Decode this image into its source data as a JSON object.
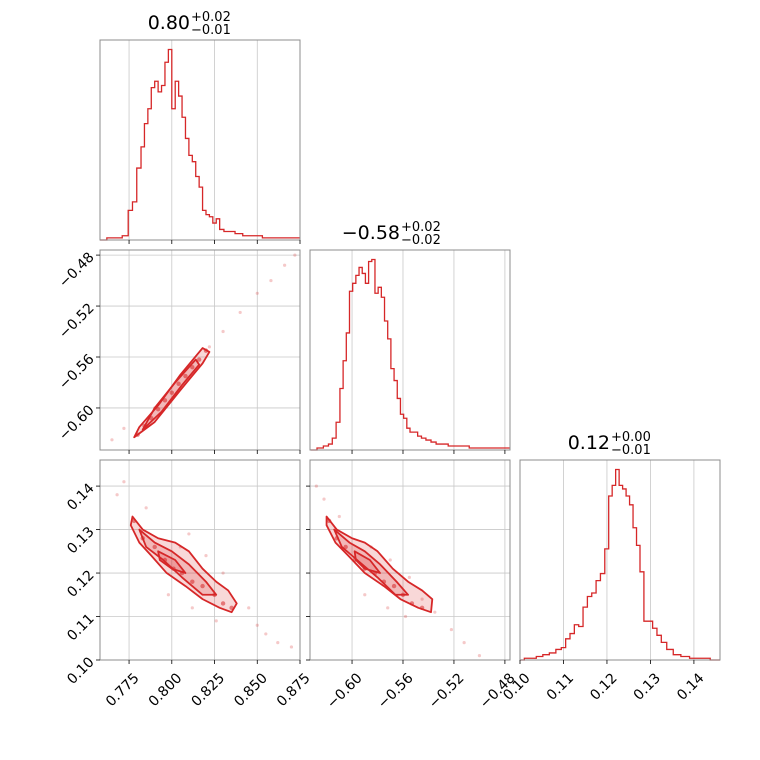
{
  "chart_data": {
    "type": "corner",
    "color": "#d62728",
    "grid": true,
    "parameters": [
      {
        "index": 0,
        "title_value": "0.80",
        "title_upper": "+0.02",
        "title_lower": "−0.01",
        "range": [
          0.758,
          0.875
        ],
        "ticks": [
          {
            "value": 0.775,
            "label": "0.775"
          },
          {
            "value": 0.8,
            "label": "0.800"
          },
          {
            "value": 0.825,
            "label": "0.825"
          },
          {
            "value": 0.85,
            "label": "0.850"
          },
          {
            "value": 0.875,
            "label": "0.875"
          }
        ],
        "histogram": {
          "x": [
            0.76,
            0.764,
            0.769,
            0.773,
            0.776,
            0.778,
            0.781,
            0.783,
            0.785,
            0.787,
            0.789,
            0.791,
            0.793,
            0.795,
            0.797,
            0.799,
            0.801,
            0.803,
            0.805,
            0.807,
            0.809,
            0.811,
            0.813,
            0.815,
            0.817,
            0.819,
            0.821,
            0.823,
            0.825,
            0.827,
            0.829,
            0.832,
            0.835,
            0.839,
            0.844,
            0.85,
            0.856,
            0.862,
            0.868,
            0.873
          ],
          "y": [
            0,
            1,
            1,
            2,
            14,
            18,
            34,
            44,
            55,
            62,
            72,
            75,
            70,
            73,
            84,
            90,
            62,
            75,
            68,
            58,
            48,
            40,
            37,
            30,
            25,
            14,
            12,
            11,
            8,
            10,
            5,
            4,
            4,
            3,
            2,
            2,
            1,
            1,
            1,
            1
          ]
        }
      },
      {
        "index": 1,
        "title_value": "−0.58",
        "title_upper": "+0.02",
        "title_lower": "−0.02",
        "range": [
          -0.633,
          -0.476
        ],
        "ticks": [
          {
            "value": -0.6,
            "label": "−0.60"
          },
          {
            "value": -0.56,
            "label": "−0.56"
          },
          {
            "value": -0.52,
            "label": "−0.52"
          },
          {
            "value": -0.48,
            "label": "−0.48"
          }
        ],
        "histogram": {
          "x": [
            -0.63,
            -0.625,
            -0.62,
            -0.617,
            -0.614,
            -0.611,
            -0.608,
            -0.606,
            -0.603,
            -0.601,
            -0.598,
            -0.596,
            -0.593,
            -0.591,
            -0.588,
            -0.586,
            -0.583,
            -0.581,
            -0.578,
            -0.576,
            -0.573,
            -0.571,
            -0.568,
            -0.566,
            -0.563,
            -0.561,
            -0.558,
            -0.556,
            -0.553,
            -0.55,
            -0.547,
            -0.544,
            -0.54,
            -0.536,
            -0.532,
            -0.527,
            -0.522,
            -0.517,
            -0.511,
            -0.505,
            -0.498,
            -0.49,
            -0.483,
            -0.478
          ],
          "y": [
            0,
            1,
            2,
            3,
            6,
            14,
            31,
            45,
            59,
            80,
            84,
            88,
            92,
            89,
            84,
            95,
            96,
            79,
            82,
            77,
            65,
            56,
            41,
            35,
            26,
            18,
            16,
            11,
            9,
            9,
            7,
            6,
            5,
            4,
            3,
            3,
            2,
            2,
            2,
            1,
            1,
            1,
            1,
            1
          ]
        }
      },
      {
        "index": 2,
        "title_value": "0.12",
        "title_upper": "+0.00",
        "title_lower": "−0.01",
        "range": [
          0.1,
          0.146
        ],
        "ticks": [
          {
            "value": 0.1,
            "label": "0.10"
          },
          {
            "value": 0.11,
            "label": "0.11"
          },
          {
            "value": 0.12,
            "label": "0.12"
          },
          {
            "value": 0.13,
            "label": "0.13"
          },
          {
            "value": 0.14,
            "label": "0.14"
          }
        ],
        "histogram": {
          "x": [
            0.1005,
            0.1015,
            0.103,
            0.1045,
            0.106,
            0.1075,
            0.109,
            0.11,
            0.111,
            0.112,
            0.113,
            0.114,
            0.115,
            0.116,
            0.117,
            0.118,
            0.119,
            0.12,
            0.1208,
            0.1216,
            0.1224,
            0.1232,
            0.124,
            0.1248,
            0.1256,
            0.1264,
            0.1272,
            0.128,
            0.129,
            0.13,
            0.131,
            0.132,
            0.133,
            0.1345,
            0.136,
            0.138,
            0.14,
            0.1425,
            0.145
          ],
          "y": [
            0,
            1,
            1,
            2,
            3,
            4,
            6,
            7,
            12,
            15,
            20,
            19,
            30,
            36,
            38,
            45,
            49,
            63,
            93,
            99,
            108,
            99,
            97,
            93,
            88,
            75,
            65,
            50,
            22,
            22,
            18,
            14,
            10,
            6,
            3,
            2,
            1,
            1,
            0
          ]
        }
      }
    ],
    "pairs": [
      {
        "row": 1,
        "col": 0,
        "points": [
          [
            0.78,
            -0.621
          ],
          [
            0.784,
            -0.614
          ],
          [
            0.788,
            -0.608
          ],
          [
            0.792,
            -0.601
          ],
          [
            0.796,
            -0.594
          ],
          [
            0.8,
            -0.588
          ],
          [
            0.804,
            -0.581
          ],
          [
            0.808,
            -0.575
          ],
          [
            0.812,
            -0.568
          ],
          [
            0.816,
            -0.562
          ],
          [
            0.82,
            -0.555
          ]
        ],
        "halo": [
          [
            0.765,
            -0.625
          ],
          [
            0.772,
            -0.616
          ],
          [
            0.79,
            -0.6
          ],
          [
            0.822,
            -0.552
          ],
          [
            0.83,
            -0.54
          ],
          [
            0.84,
            -0.525
          ],
          [
            0.85,
            -0.51
          ],
          [
            0.858,
            -0.5
          ],
          [
            0.866,
            -0.488
          ],
          [
            0.872,
            -0.48
          ]
        ],
        "contours": [
          [
            [
              0.778,
              -0.623
            ],
            [
              0.79,
              -0.611
            ],
            [
              0.805,
              -0.586
            ],
            [
              0.818,
              -0.565
            ],
            [
              0.822,
              -0.556
            ],
            [
              0.818,
              -0.553
            ],
            [
              0.805,
              -0.574
            ],
            [
              0.792,
              -0.598
            ],
            [
              0.781,
              -0.615
            ]
          ],
          [
            [
              0.783,
              -0.617
            ],
            [
              0.794,
              -0.603
            ],
            [
              0.806,
              -0.582
            ],
            [
              0.816,
              -0.566
            ],
            [
              0.814,
              -0.562
            ],
            [
              0.802,
              -0.58
            ],
            [
              0.79,
              -0.6
            ]
          ]
        ]
      },
      {
        "row": 2,
        "col": 0,
        "points": [
          [
            0.778,
            0.132
          ],
          [
            0.783,
            0.128
          ],
          [
            0.79,
            0.126
          ],
          [
            0.796,
            0.123
          ],
          [
            0.801,
            0.121
          ],
          [
            0.806,
            0.12
          ],
          [
            0.812,
            0.118
          ],
          [
            0.818,
            0.117
          ],
          [
            0.825,
            0.115
          ],
          [
            0.83,
            0.113
          ],
          [
            0.835,
            0.112
          ]
        ],
        "halo": [
          [
            0.768,
            0.138
          ],
          [
            0.772,
            0.141
          ],
          [
            0.785,
            0.135
          ],
          [
            0.805,
            0.126
          ],
          [
            0.81,
            0.129
          ],
          [
            0.82,
            0.124
          ],
          [
            0.83,
            0.12
          ],
          [
            0.845,
            0.112
          ],
          [
            0.85,
            0.108
          ],
          [
            0.855,
            0.106
          ],
          [
            0.862,
            0.104
          ],
          [
            0.87,
            0.103
          ],
          [
            0.798,
            0.115
          ],
          [
            0.812,
            0.112
          ],
          [
            0.826,
            0.109
          ]
        ],
        "contours": [
          [
            [
              0.777,
              0.133
            ],
            [
              0.783,
              0.13
            ],
            [
              0.792,
              0.128
            ],
            [
              0.802,
              0.127
            ],
            [
              0.81,
              0.125
            ],
            [
              0.818,
              0.121
            ],
            [
              0.826,
              0.118
            ],
            [
              0.833,
              0.116
            ],
            [
              0.838,
              0.113
            ],
            [
              0.835,
              0.111
            ],
            [
              0.828,
              0.112
            ],
            [
              0.818,
              0.114
            ],
            [
              0.808,
              0.117
            ],
            [
              0.797,
              0.12
            ],
            [
              0.788,
              0.124
            ],
            [
              0.781,
              0.127
            ],
            [
              0.776,
              0.131
            ]
          ],
          [
            [
              0.781,
              0.13
            ],
            [
              0.79,
              0.127
            ],
            [
              0.8,
              0.125
            ],
            [
              0.81,
              0.122
            ],
            [
              0.82,
              0.118
            ],
            [
              0.826,
              0.115
            ],
            [
              0.818,
              0.115
            ],
            [
              0.806,
              0.119
            ],
            [
              0.795,
              0.123
            ],
            [
              0.785,
              0.126
            ]
          ],
          [
            [
              0.792,
              0.125
            ],
            [
              0.802,
              0.123
            ],
            [
              0.808,
              0.12
            ],
            [
              0.8,
              0.121
            ],
            [
              0.793,
              0.123
            ]
          ]
        ]
      },
      {
        "row": 2,
        "col": 1,
        "points": [
          [
            -0.618,
            0.132
          ],
          [
            -0.612,
            0.128
          ],
          [
            -0.605,
            0.126
          ],
          [
            -0.598,
            0.123
          ],
          [
            -0.59,
            0.121
          ],
          [
            -0.582,
            0.12
          ],
          [
            -0.575,
            0.118
          ],
          [
            -0.567,
            0.117
          ],
          [
            -0.56,
            0.115
          ],
          [
            -0.553,
            0.113
          ],
          [
            -0.545,
            0.112
          ]
        ],
        "halo": [
          [
            -0.628,
            0.14
          ],
          [
            -0.622,
            0.137
          ],
          [
            -0.61,
            0.133
          ],
          [
            -0.585,
            0.126
          ],
          [
            -0.57,
            0.123
          ],
          [
            -0.555,
            0.119
          ],
          [
            -0.545,
            0.114
          ],
          [
            -0.535,
            0.111
          ],
          [
            -0.522,
            0.107
          ],
          [
            -0.512,
            0.104
          ],
          [
            -0.5,
            0.101
          ],
          [
            -0.59,
            0.115
          ],
          [
            -0.572,
            0.112
          ],
          [
            -0.558,
            0.11
          ]
        ],
        "contours": [
          [
            [
              -0.62,
              0.133
            ],
            [
              -0.612,
              0.13
            ],
            [
              -0.6,
              0.128
            ],
            [
              -0.59,
              0.127
            ],
            [
              -0.58,
              0.125
            ],
            [
              -0.568,
              0.121
            ],
            [
              -0.556,
              0.118
            ],
            [
              -0.545,
              0.116
            ],
            [
              -0.537,
              0.114
            ],
            [
              -0.538,
              0.111
            ],
            [
              -0.548,
              0.112
            ],
            [
              -0.562,
              0.114
            ],
            [
              -0.575,
              0.117
            ],
            [
              -0.59,
              0.12
            ],
            [
              -0.603,
              0.124
            ],
            [
              -0.613,
              0.127
            ],
            [
              -0.62,
              0.131
            ]
          ],
          [
            [
              -0.614,
              0.13
            ],
            [
              -0.602,
              0.127
            ],
            [
              -0.59,
              0.125
            ],
            [
              -0.578,
              0.122
            ],
            [
              -0.565,
              0.118
            ],
            [
              -0.556,
              0.115
            ],
            [
              -0.566,
              0.115
            ],
            [
              -0.58,
              0.119
            ],
            [
              -0.596,
              0.123
            ],
            [
              -0.608,
              0.126
            ]
          ],
          [
            [
              -0.598,
              0.125
            ],
            [
              -0.586,
              0.123
            ],
            [
              -0.578,
              0.12
            ],
            [
              -0.59,
              0.121
            ],
            [
              -0.597,
              0.123
            ]
          ]
        ]
      }
    ]
  }
}
